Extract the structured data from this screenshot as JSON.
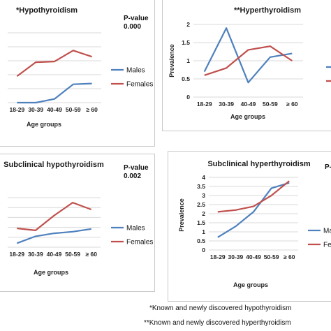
{
  "chart_data": [
    {
      "type": "line",
      "title": "*Hypothyroidism",
      "pvalue_label": "P-value",
      "pvalue": "0.000",
      "categories": [
        "18-29",
        "30-39",
        "40-49",
        "50-59",
        "≥ 60"
      ],
      "xlabel": "Age groups",
      "ylabel": "",
      "ylim": [
        0,
        1.9
      ],
      "series": [
        {
          "name": "Males",
          "values": [
            0.0,
            0.0,
            0.1,
            0.5,
            0.52
          ]
        },
        {
          "name": "Females",
          "values": [
            0.72,
            1.1,
            1.12,
            1.42,
            1.25
          ]
        }
      ],
      "series_colors": [
        "#4f81bd",
        "#c0504d"
      ],
      "grid": true,
      "legend": "right"
    },
    {
      "type": "line",
      "title": "**Hyperthyroidism",
      "categories": [
        "18-29",
        "30-39",
        "40-49",
        "50-59",
        "≥ 60"
      ],
      "xlabel": "Age groups",
      "ylabel": "Prevalence",
      "ylim": [
        0,
        2
      ],
      "yticks": [
        "0",
        "0.5",
        "1",
        "1.5",
        "2"
      ],
      "series": [
        {
          "name": "",
          "values": [
            0.7,
            1.9,
            0.4,
            1.1,
            1.2
          ]
        },
        {
          "name": "",
          "values": [
            0.6,
            0.8,
            1.3,
            1.4,
            1.0
          ]
        }
      ],
      "series_colors": [
        "#4f81bd",
        "#c0504d"
      ],
      "grid": true,
      "legend": "right"
    },
    {
      "type": "line",
      "title": "Subclinical hypothyroidism",
      "pvalue_label": "P-value",
      "pvalue": "0.002",
      "categories": [
        "18-29",
        "30-39",
        "40-49",
        "50-59",
        "≥ 60"
      ],
      "xlabel": "Age groups",
      "ylabel": "",
      "ylim": [
        0,
        2.5
      ],
      "series": [
        {
          "name": "Males",
          "values": [
            0.2,
            0.55,
            0.7,
            0.78,
            0.92
          ]
        },
        {
          "name": "Females",
          "values": [
            0.95,
            0.85,
            1.6,
            2.25,
            1.9
          ]
        }
      ],
      "series_colors": [
        "#4f81bd",
        "#c0504d"
      ],
      "grid": true,
      "legend": "right"
    },
    {
      "type": "line",
      "title": "Subclinical hyperthyroidism",
      "pvalue_label": "P-va",
      "categories": [
        "18-29",
        "30-39",
        "40-49",
        "50-59",
        "≥ 60"
      ],
      "xlabel": "Age groups",
      "ylabel": "Prevalence",
      "ylim": [
        0,
        4
      ],
      "yticks": [
        "0",
        "0.5",
        "1",
        "1.5",
        "2",
        "2.5",
        "3",
        "3.5",
        "4"
      ],
      "series": [
        {
          "name": "Ma",
          "values": [
            0.7,
            1.3,
            2.1,
            3.4,
            3.7
          ]
        },
        {
          "name": "Fe",
          "values": [
            2.1,
            2.2,
            2.4,
            3.0,
            3.8
          ]
        }
      ],
      "series_colors": [
        "#4f81bd",
        "#c0504d"
      ],
      "grid": true,
      "legend": "right"
    }
  ],
  "footnotes": {
    "hypo": "*Known and newly discovered hypothyroidism",
    "hyper": "**Known and newly discovered hyperthyroidism"
  }
}
